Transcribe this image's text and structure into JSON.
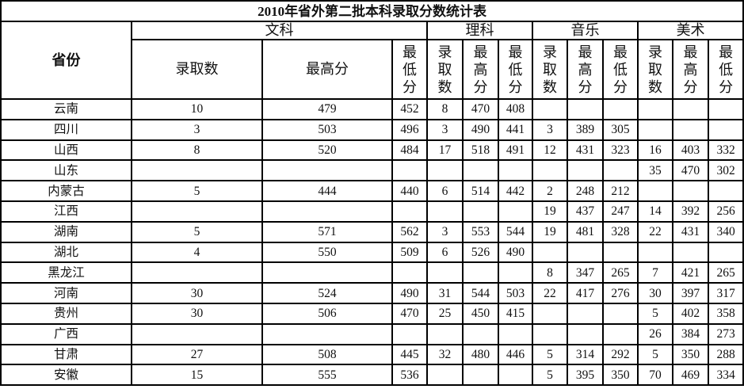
{
  "title": "2010年省外第二批本科录取分数统计表",
  "header": {
    "province": "省份",
    "groups": [
      "文科",
      "理科",
      "音乐",
      "美术"
    ],
    "wenke_cols": [
      "录取数",
      "最高分",
      "最\n低\n分"
    ],
    "sub_cols": [
      "录\n取\n数",
      "最\n高\n分",
      "最\n低\n分"
    ]
  },
  "rows": [
    {
      "province": "云南",
      "values": [
        "10",
        "479",
        "452",
        "8",
        "470",
        "408",
        "",
        "",
        "",
        "",
        "",
        ""
      ]
    },
    {
      "province": "四川",
      "values": [
        "3",
        "503",
        "496",
        "3",
        "490",
        "441",
        "3",
        "389",
        "305",
        "",
        "",
        ""
      ]
    },
    {
      "province": "山西",
      "values": [
        "8",
        "520",
        "484",
        "17",
        "518",
        "491",
        "12",
        "431",
        "323",
        "16",
        "403",
        "332"
      ]
    },
    {
      "province": "山东",
      "values": [
        "",
        "",
        "",
        "",
        "",
        "",
        "",
        "",
        "",
        "35",
        "470",
        "302"
      ]
    },
    {
      "province": "内蒙古",
      "values": [
        "5",
        "444",
        "440",
        "6",
        "514",
        "442",
        "2",
        "248",
        "212",
        "",
        "",
        ""
      ]
    },
    {
      "province": "江西",
      "values": [
        "",
        "",
        "",
        "",
        "",
        "",
        "19",
        "437",
        "247",
        "14",
        "392",
        "256"
      ]
    },
    {
      "province": "湖南",
      "values": [
        "5",
        "571",
        "562",
        "3",
        "553",
        "544",
        "19",
        "481",
        "328",
        "22",
        "431",
        "340"
      ]
    },
    {
      "province": "湖北",
      "values": [
        "4",
        "550",
        "509",
        "6",
        "526",
        "490",
        "",
        "",
        "",
        "",
        "",
        ""
      ]
    },
    {
      "province": "黑龙江",
      "values": [
        "",
        "",
        "",
        "",
        "",
        "",
        "8",
        "347",
        "265",
        "7",
        "421",
        "265"
      ]
    },
    {
      "province": "河南",
      "values": [
        "30",
        "524",
        "490",
        "31",
        "544",
        "503",
        "22",
        "417",
        "276",
        "30",
        "397",
        "317"
      ]
    },
    {
      "province": "贵州",
      "values": [
        "30",
        "506",
        "470",
        "25",
        "450",
        "415",
        "",
        "",
        "",
        "5",
        "402",
        "358"
      ]
    },
    {
      "province": "广西",
      "values": [
        "",
        "",
        "",
        "",
        "",
        "",
        "",
        "",
        "",
        "26",
        "384",
        "273"
      ]
    },
    {
      "province": "甘肃",
      "values": [
        "27",
        "508",
        "445",
        "32",
        "480",
        "446",
        "5",
        "314",
        "292",
        "5",
        "350",
        "288"
      ]
    },
    {
      "province": "安徽",
      "values": [
        "15",
        "555",
        "536",
        "",
        "",
        "",
        "5",
        "395",
        "350",
        "70",
        "469",
        "334"
      ]
    }
  ]
}
